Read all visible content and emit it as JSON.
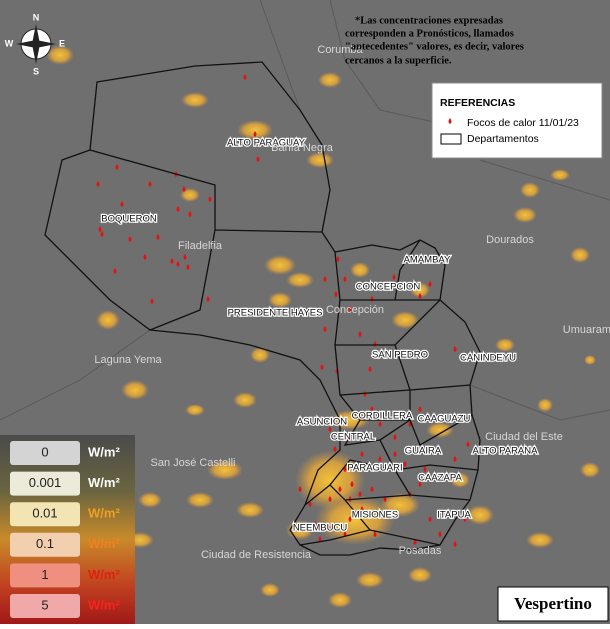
{
  "note_lines": [
    "*Las concentraciones expresadas",
    "corresponden a Pronósticos, llamados",
    "\"antecedentes\" valores, es decir, valores",
    "cercanos a la superficie."
  ],
  "legend": {
    "title": "REFERENCIAS",
    "items": [
      "Focos de calor 11/01/23",
      "Departamentos"
    ]
  },
  "scale": {
    "unit": "W/m²",
    "levels": [
      "0",
      "0.001",
      "0.01",
      "0.1",
      "1",
      "5"
    ]
  },
  "compass": [
    "N",
    "E",
    "S",
    "W"
  ],
  "departments": [
    "ALTO PARAGUAY",
    "BOQUERON",
    "PRESIDENTE HAYES",
    "CONCEPCION",
    "AMAMBAY",
    "SAN PEDRO",
    "CANINDEYU",
    "CORDILLERA",
    "CAAGUAZU",
    "ASUNCION",
    "CENTRAL",
    "GUAIRA",
    "ALTO PARANA",
    "PARAGUARI",
    "CAAZAPA",
    "MISIONES",
    "ITAPUA",
    "NEEMBUCU"
  ],
  "places": [
    "Corumbá",
    "Filadelfia",
    "Dourados",
    "Laguna Yema",
    "Umuarama",
    "Ciudad del Este",
    "San José Castelli",
    "Ciudad de Resistencia",
    "Posadas",
    "Concepción",
    "Bahía Negra"
  ],
  "period": "Vespertino"
}
